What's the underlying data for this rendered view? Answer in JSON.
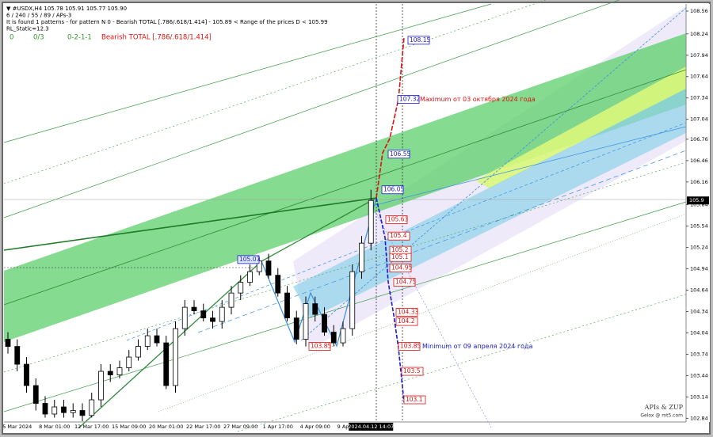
{
  "chart_data": {
    "type": "candlestick",
    "header": [
      "▼ #USDX,H4  105.78 105.91 105.77 105.90",
      "6 / 240 / 55 / 89 / APs-3",
      "It is found 1 patterns  -  for pattern N 0 - Bearish TOTAL [.786/.618/1.414] - 105.89 < Range of the prices D < 105.99",
      "RL_Static=12.3"
    ],
    "status": [
      "0",
      "0/3",
      "0-2-1-1"
    ],
    "pattern_title": "Bearish TOTAL [.786/.618/1.414]",
    "categories": [
      null,
      "5 Mar 2024",
      null,
      null,
      null,
      "8 Mar 01:00",
      null,
      null,
      null,
      "12 Mar 17:00",
      null,
      null,
      null,
      "15 Mar 09:00",
      null,
      null,
      null,
      "20 Mar 01:00",
      null,
      null,
      null,
      "22 Mar 17:00",
      null,
      null,
      null,
      "27 Mar 09:00",
      null,
      null,
      null,
      "1 Apr 17:00",
      null,
      null,
      null,
      "4 Apr 09:00",
      null,
      null,
      null,
      "9 Apr 01:00",
      null,
      "2024.04.12 14:07"
    ],
    "open": [
      103.95,
      103.85,
      103.6,
      103.3,
      103.05,
      102.9,
      103.0,
      102.92,
      102.95,
      102.88,
      103.1,
      103.5,
      103.45,
      103.55,
      103.7,
      103.85,
      104.0,
      103.9,
      103.3,
      104.1,
      104.4,
      104.35,
      104.25,
      104.2,
      104.4,
      104.6,
      104.75,
      104.9,
      105.05,
      104.85,
      104.6,
      104.25,
      103.95,
      104.45,
      104.3,
      104.05,
      103.9,
      104.1,
      104.9,
      105.3
    ],
    "high": [
      104.05,
      103.95,
      103.7,
      103.4,
      103.15,
      103.1,
      103.1,
      103.05,
      103.05,
      103.2,
      103.6,
      103.6,
      103.65,
      103.8,
      103.95,
      104.1,
      104.1,
      104.0,
      104.2,
      104.5,
      104.5,
      104.45,
      104.35,
      104.5,
      104.7,
      104.85,
      105.0,
      105.1,
      105.15,
      104.95,
      104.7,
      104.35,
      104.55,
      104.55,
      104.4,
      104.15,
      104.2,
      105.0,
      105.4,
      106.05
    ],
    "low": [
      103.75,
      103.5,
      103.2,
      102.95,
      102.85,
      102.85,
      102.85,
      102.85,
      102.8,
      102.85,
      103.0,
      103.35,
      103.4,
      103.5,
      103.65,
      103.8,
      103.85,
      103.25,
      103.2,
      104.0,
      104.3,
      104.2,
      104.1,
      104.1,
      104.3,
      104.5,
      104.7,
      104.85,
      104.8,
      104.55,
      104.2,
      103.88,
      103.85,
      104.2,
      104.0,
      103.85,
      103.85,
      104.0,
      104.8,
      105.2
    ],
    "close": [
      103.85,
      103.6,
      103.3,
      103.05,
      102.9,
      103.0,
      102.92,
      102.95,
      102.88,
      103.1,
      103.5,
      103.45,
      103.55,
      103.7,
      103.85,
      104.0,
      103.9,
      103.3,
      104.1,
      104.4,
      104.35,
      104.25,
      104.2,
      104.4,
      104.6,
      104.75,
      104.9,
      105.05,
      104.85,
      104.6,
      104.25,
      103.95,
      104.45,
      104.3,
      104.05,
      103.9,
      104.1,
      104.9,
      105.3,
      105.9
    ],
    "up_color": "#ffffff",
    "down_color": "#000000",
    "ylim": [
      102.8,
      108.66
    ],
    "yticks": [
      108.56,
      108.24,
      107.94,
      107.64,
      107.34,
      107.04,
      106.76,
      106.46,
      106.16,
      105.84,
      105.54,
      105.24,
      104.94,
      104.64,
      104.34,
      104.04,
      103.74,
      103.44,
      103.14,
      102.84
    ],
    "current_price": 105.9,
    "levels": [
      {
        "value": 108.15,
        "color": "#1a1acc"
      },
      {
        "value": 107.32,
        "color": "#1a1acc"
      },
      {
        "value": 106.55,
        "color": "#1a1acc"
      },
      {
        "value": 106.05,
        "color": "#1a1acc"
      },
      {
        "value": 105.63,
        "color": "#dd1111"
      },
      {
        "value": 105.4,
        "color": "#dd1111"
      },
      {
        "value": 105.2,
        "color": "#dd1111"
      },
      {
        "value": 105.1,
        "color": "#dd1111"
      },
      {
        "value": 104.95,
        "color": "#dd1111"
      },
      {
        "value": 104.75,
        "color": "#dd1111"
      },
      {
        "value": 104.33,
        "color": "#dd1111"
      },
      {
        "value": 104.2,
        "color": "#dd1111"
      },
      {
        "value": 103.85,
        "color": "#dd1111"
      },
      {
        "value": 103.5,
        "color": "#dd1111"
      },
      {
        "value": 103.1,
        "color": "#dd1111"
      },
      {
        "value": 105.07,
        "color": "#1a1acc"
      },
      {
        "value": 103.85,
        "color": "#dd1111"
      }
    ],
    "annotations": [
      {
        "text": "Maximum от 03 октября 2024 года",
        "color": "#dd1111"
      },
      {
        "text": "Minimum от 09 апреля 2024 года",
        "color": "#1a1acc"
      }
    ],
    "signature": [
      "APIs & ZUP",
      "Gelox @ mt5.com"
    ]
  }
}
